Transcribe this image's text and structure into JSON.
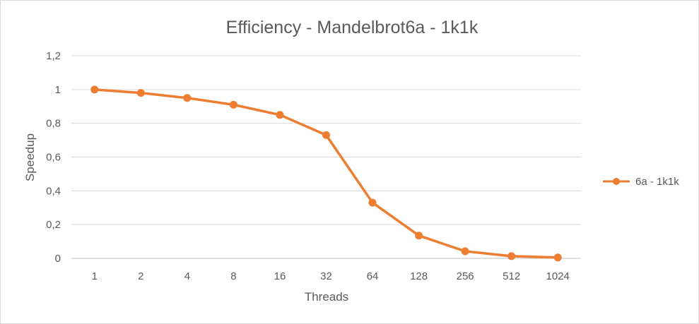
{
  "chart_data": {
    "type": "line",
    "title": "Efficiency - Mandelbrot6a - 1k1k",
    "xlabel": "Threads",
    "ylabel": "Speedup",
    "categories": [
      "1",
      "2",
      "4",
      "8",
      "16",
      "32",
      "64",
      "128",
      "256",
      "512",
      "1024"
    ],
    "series": [
      {
        "name": "6a - 1k1k",
        "color": "#ed7d31",
        "values": [
          1.0,
          0.98,
          0.95,
          0.91,
          0.85,
          0.73,
          0.33,
          0.135,
          0.042,
          0.013,
          0.005
        ]
      }
    ],
    "ylim": [
      0,
      1.2
    ],
    "yticks": [
      "0",
      "0,2",
      "0,4",
      "0,6",
      "0,8",
      "1",
      "1,2"
    ],
    "grid": true,
    "legend_position": "right"
  }
}
